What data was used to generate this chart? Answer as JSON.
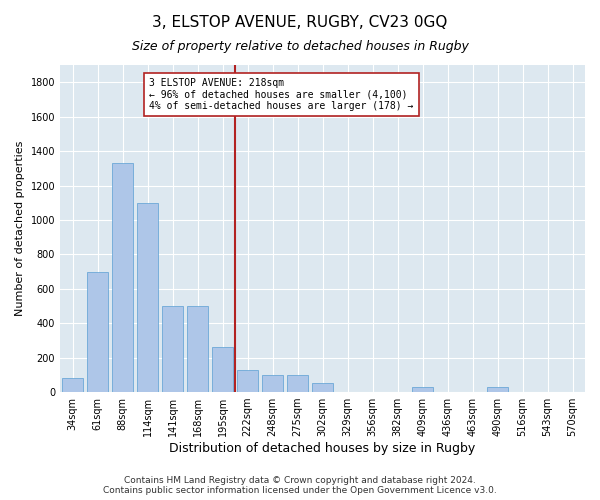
{
  "title": "3, ELSTOP AVENUE, RUGBY, CV23 0GQ",
  "subtitle": "Size of property relative to detached houses in Rugby",
  "xlabel": "Distribution of detached houses by size in Rugby",
  "ylabel": "Number of detached properties",
  "categories": [
    "34sqm",
    "61sqm",
    "88sqm",
    "114sqm",
    "141sqm",
    "168sqm",
    "195sqm",
    "222sqm",
    "248sqm",
    "275sqm",
    "302sqm",
    "329sqm",
    "356sqm",
    "382sqm",
    "409sqm",
    "436sqm",
    "463sqm",
    "490sqm",
    "516sqm",
    "543sqm",
    "570sqm"
  ],
  "values": [
    80,
    700,
    1330,
    1100,
    500,
    500,
    260,
    130,
    100,
    100,
    50,
    0,
    0,
    0,
    30,
    0,
    0,
    30,
    0,
    0,
    0
  ],
  "bar_color": "#aec6e8",
  "bar_edge_color": "#5a9fd4",
  "vline_x_index": 7,
  "vline_color": "#b22222",
  "annotation_text": "3 ELSTOP AVENUE: 218sqm\n← 96% of detached houses are smaller (4,100)\n4% of semi-detached houses are larger (178) →",
  "annotation_box_color": "#ffffff",
  "annotation_box_edge": "#b22222",
  "ylim": [
    0,
    1900
  ],
  "yticks": [
    0,
    200,
    400,
    600,
    800,
    1000,
    1200,
    1400,
    1600,
    1800
  ],
  "footer_text": "Contains HM Land Registry data © Crown copyright and database right 2024.\nContains public sector information licensed under the Open Government Licence v3.0.",
  "bg_color": "#ffffff",
  "plot_bg_color": "#dde8f0",
  "title_fontsize": 11,
  "subtitle_fontsize": 9,
  "xlabel_fontsize": 9,
  "ylabel_fontsize": 8,
  "tick_fontsize": 7,
  "annotation_fontsize": 7,
  "footer_fontsize": 6.5
}
